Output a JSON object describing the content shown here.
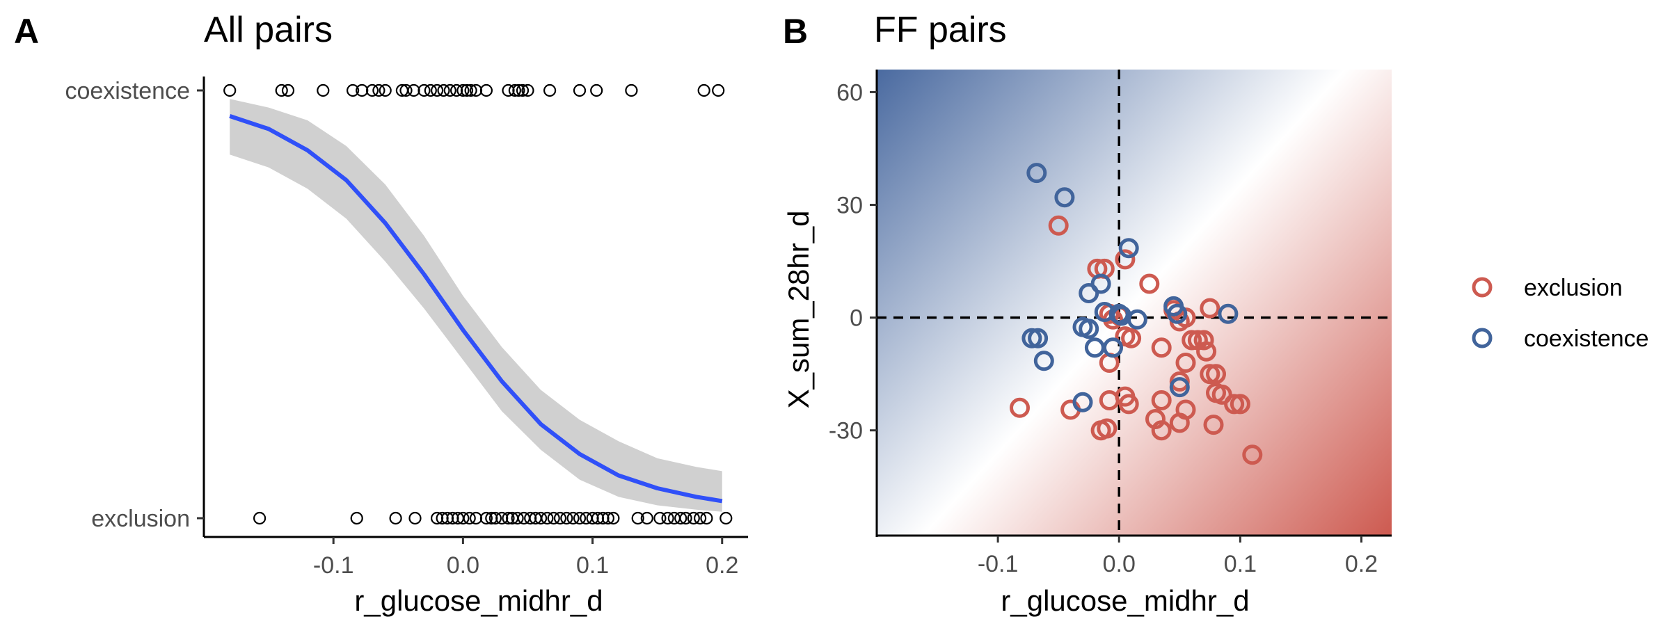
{
  "colors": {
    "exclusion": "#CD5A50",
    "coexistence": "#41649B",
    "fit_line": "#3050F8",
    "ribbon": "#D0D0D0",
    "gradient_blue": "#4A6AA0",
    "gradient_red": "#CD5A50"
  },
  "legend": {
    "items": [
      "exclusion",
      "coexistence"
    ],
    "placement": "right"
  },
  "chart_data": [
    {
      "panel": "A",
      "type": "scatter",
      "title": "All pairs",
      "xlabel": "r_glucose_midhr_d",
      "ylabel": "",
      "xlim": [
        -0.2,
        0.22
      ],
      "x_ticks": [
        -0.1,
        0.0,
        0.1,
        0.2
      ],
      "x_tick_labels": [
        "-0.1",
        "0.0",
        "0.1",
        "0.2"
      ],
      "categories": [
        "exclusion",
        "coexistence"
      ],
      "y_tick_labels": [
        "exclusion",
        "coexistence"
      ],
      "grid": false,
      "series": [
        {
          "outcome": "coexistence",
          "x": [
            -0.18,
            -0.14,
            -0.135,
            -0.108,
            -0.085,
            -0.078,
            -0.07,
            -0.065,
            -0.06,
            -0.047,
            -0.044,
            -0.038,
            -0.03,
            -0.025,
            -0.02,
            -0.015,
            -0.01,
            -0.005,
            0.0,
            0.003,
            0.006,
            0.01,
            0.018,
            0.035,
            0.04,
            0.043,
            0.046,
            0.05,
            0.067,
            0.09,
            0.103,
            0.13,
            0.186,
            0.197
          ]
        },
        {
          "outcome": "exclusion",
          "x": [
            -0.157,
            -0.082,
            -0.052,
            -0.037,
            -0.02,
            -0.016,
            -0.012,
            -0.008,
            -0.004,
            0.0,
            0.005,
            0.01,
            0.018,
            0.022,
            0.025,
            0.03,
            0.035,
            0.038,
            0.042,
            0.047,
            0.052,
            0.056,
            0.06,
            0.065,
            0.07,
            0.075,
            0.08,
            0.085,
            0.09,
            0.095,
            0.1,
            0.104,
            0.108,
            0.112,
            0.116,
            0.135,
            0.142,
            0.152,
            0.158,
            0.163,
            0.168,
            0.172,
            0.178,
            0.183,
            0.188,
            0.203
          ]
        }
      ],
      "fit": {
        "kind": "logistic",
        "x": [
          -0.18,
          -0.15,
          -0.12,
          -0.09,
          -0.06,
          -0.03,
          0.0,
          0.03,
          0.06,
          0.09,
          0.12,
          0.15,
          0.18,
          0.2
        ],
        "p": [
          0.94,
          0.91,
          0.86,
          0.79,
          0.69,
          0.57,
          0.44,
          0.32,
          0.22,
          0.15,
          0.1,
          0.07,
          0.05,
          0.04
        ],
        "lo": [
          0.85,
          0.82,
          0.77,
          0.7,
          0.6,
          0.49,
          0.37,
          0.25,
          0.16,
          0.09,
          0.05,
          0.03,
          0.02,
          0.015
        ],
        "hi": [
          0.98,
          0.96,
          0.93,
          0.87,
          0.78,
          0.66,
          0.52,
          0.4,
          0.3,
          0.23,
          0.18,
          0.14,
          0.12,
          0.11
        ]
      }
    },
    {
      "panel": "B",
      "type": "scatter",
      "title": "FF pairs",
      "xlabel": "r_glucose_midhr_d",
      "ylabel": "X_sum_28hr_d",
      "xlim": [
        -0.2,
        0.225
      ],
      "ylim": [
        -58,
        66
      ],
      "x_ticks": [
        -0.1,
        0.0,
        0.1,
        0.2
      ],
      "x_tick_labels": [
        "-0.1",
        "0.0",
        "0.1",
        "0.2"
      ],
      "y_ticks": [
        -30,
        0,
        30,
        60
      ],
      "y_tick_labels": [
        "-30",
        "0",
        "30",
        "60"
      ],
      "reference_lines": {
        "x": 0,
        "y": 0,
        "style": "dashed"
      },
      "background": "diagonal gradient: blue (top-left, coexistence) to red (bottom-right, exclusion)",
      "grid": false,
      "series": [
        {
          "name": "exclusion",
          "points": [
            [
              -0.05,
              24.5
            ],
            [
              -0.018,
              13
            ],
            [
              -0.012,
              13
            ],
            [
              0.005,
              15.5
            ],
            [
              0.025,
              9
            ],
            [
              -0.008,
              1
            ],
            [
              -0.005,
              -0.5
            ],
            [
              0.0,
              0.5
            ],
            [
              0.005,
              -5
            ],
            [
              0.01,
              -5.5
            ],
            [
              -0.008,
              -12
            ],
            [
              0.045,
              2
            ],
            [
              0.05,
              -1
            ],
            [
              0.055,
              0
            ],
            [
              0.075,
              2.5
            ],
            [
              0.035,
              -8
            ],
            [
              0.055,
              -12
            ],
            [
              0.06,
              -6
            ],
            [
              0.065,
              -6
            ],
            [
              0.07,
              -6
            ],
            [
              0.072,
              -9
            ],
            [
              0.075,
              -15
            ],
            [
              0.08,
              -15
            ],
            [
              0.08,
              -20
            ],
            [
              0.085,
              -20.5
            ],
            [
              0.095,
              -23
            ],
            [
              0.1,
              -23
            ],
            [
              0.11,
              -36.5
            ],
            [
              0.05,
              -17
            ],
            [
              0.055,
              -24.5
            ],
            [
              0.035,
              -22
            ],
            [
              0.03,
              -27
            ],
            [
              0.035,
              -30
            ],
            [
              0.05,
              -28
            ],
            [
              0.078,
              -28.5
            ],
            [
              0.005,
              -21
            ],
            [
              0.008,
              -23
            ],
            [
              -0.008,
              -22
            ],
            [
              -0.015,
              -30
            ],
            [
              -0.01,
              -29.5
            ],
            [
              -0.04,
              -24.5
            ],
            [
              -0.082,
              -24
            ]
          ]
        },
        {
          "name": "coexistence",
          "points": [
            [
              -0.068,
              38.5
            ],
            [
              -0.045,
              32
            ],
            [
              0.008,
              18.5
            ],
            [
              -0.015,
              9
            ],
            [
              -0.025,
              6.5
            ],
            [
              -0.012,
              1.5
            ],
            [
              0.0,
              1
            ],
            [
              0.002,
              0.5
            ],
            [
              0.015,
              -0.5
            ],
            [
              0.045,
              3
            ],
            [
              0.048,
              1
            ],
            [
              0.09,
              1
            ],
            [
              -0.03,
              -2.5
            ],
            [
              -0.025,
              -3
            ],
            [
              -0.02,
              -8
            ],
            [
              -0.005,
              -8
            ],
            [
              -0.072,
              -5.5
            ],
            [
              -0.067,
              -5.5
            ],
            [
              -0.062,
              -11.5
            ],
            [
              -0.03,
              -22.5
            ],
            [
              0.05,
              -18.5
            ]
          ]
        }
      ]
    }
  ]
}
